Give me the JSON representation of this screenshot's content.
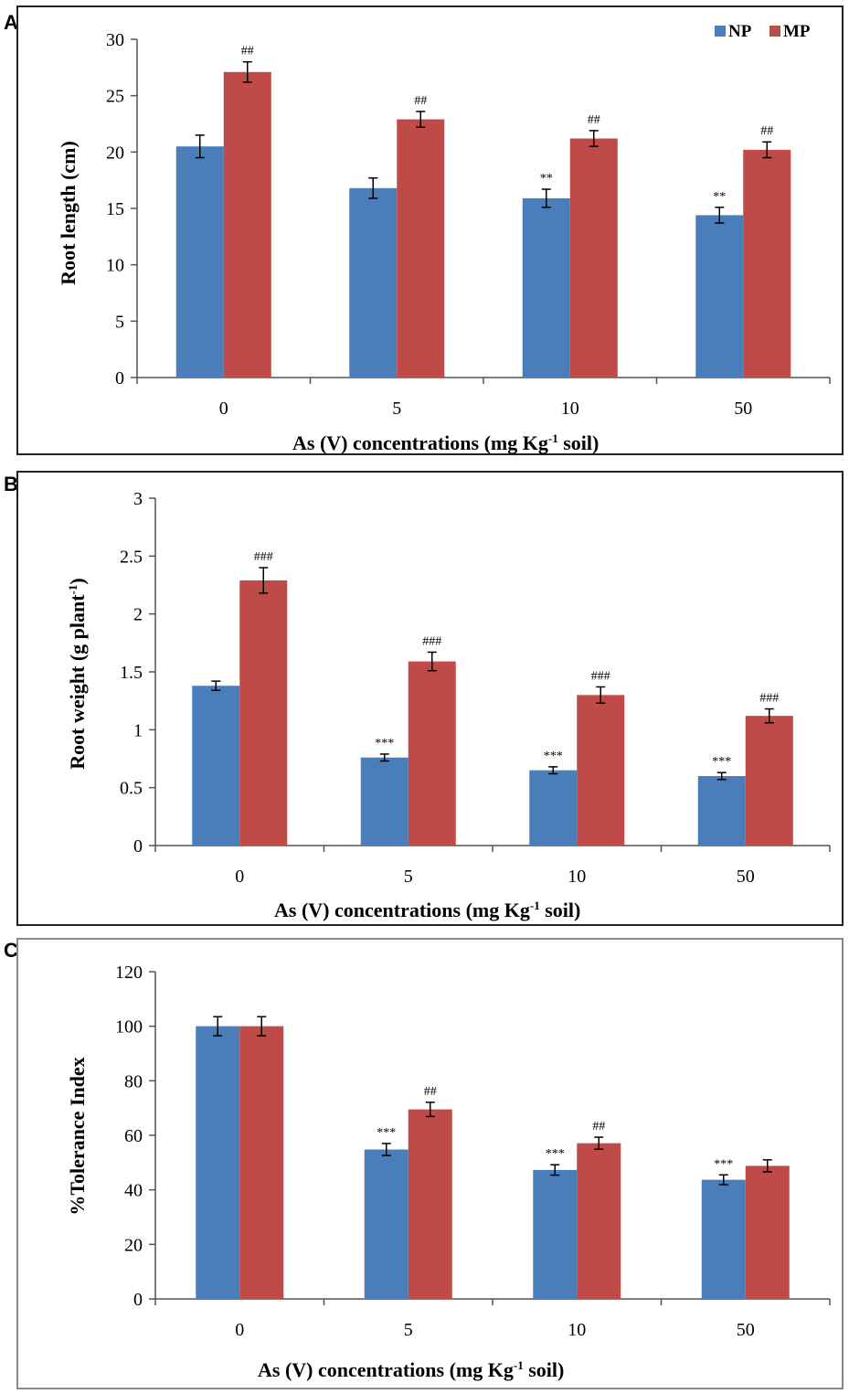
{
  "colors": {
    "np": "#4a7ebb",
    "mp": "#be4b48",
    "axis": "#555555"
  },
  "chart_data": [
    {
      "panel": "A",
      "type": "bar",
      "categories": [
        "0",
        "5",
        "10",
        "50"
      ],
      "series": [
        {
          "name": "NP",
          "values": [
            20.5,
            16.8,
            15.9,
            14.4
          ],
          "errors": [
            1.0,
            0.9,
            0.8,
            0.7
          ],
          "annotations": [
            "",
            "",
            "**",
            "**"
          ]
        },
        {
          "name": "MP",
          "values": [
            27.1,
            22.9,
            21.2,
            20.2
          ],
          "errors": [
            0.9,
            0.7,
            0.7,
            0.7
          ],
          "annotations": [
            "##",
            "##",
            "##",
            "##"
          ]
        }
      ],
      "xlabel": "As (V)  concentrations (mg Kg-1 soil)",
      "ylabel": "Root length (cm)",
      "ylim": [
        0,
        30
      ],
      "yticks": [
        "0",
        "5",
        "10",
        "15",
        "20",
        "25",
        "30"
      ],
      "legend": "top-right"
    },
    {
      "panel": "B",
      "type": "bar",
      "categories": [
        "0",
        "5",
        "10",
        "50"
      ],
      "series": [
        {
          "name": "NP",
          "values": [
            1.38,
            0.76,
            0.65,
            0.6
          ],
          "errors": [
            0.04,
            0.03,
            0.03,
            0.03
          ],
          "annotations": [
            "",
            "***",
            "***",
            "***"
          ]
        },
        {
          "name": "MP",
          "values": [
            2.29,
            1.59,
            1.3,
            1.12
          ],
          "errors": [
            0.11,
            0.08,
            0.07,
            0.06
          ],
          "annotations": [
            "###",
            "###",
            "###",
            "###"
          ]
        }
      ],
      "xlabel": "As (V) concentrations (mg Kg-1 soil)",
      "ylabel": "Root weight (g plant-1)",
      "ylim": [
        0,
        3
      ],
      "yticks": [
        "0",
        "0.5",
        "1",
        "1.5",
        "2",
        "2.5",
        "3"
      ]
    },
    {
      "panel": "C",
      "type": "bar",
      "categories": [
        "0",
        "5",
        "10",
        "50"
      ],
      "series": [
        {
          "name": "NP",
          "values": [
            100,
            54.8,
            47.3,
            43.7
          ],
          "errors": [
            3.5,
            2.2,
            1.9,
            1.8
          ],
          "annotations": [
            "",
            "***",
            "***",
            "***"
          ]
        },
        {
          "name": "MP",
          "values": [
            100,
            69.5,
            57.1,
            48.8
          ],
          "errors": [
            3.5,
            2.6,
            2.2,
            2.2
          ],
          "annotations": [
            "",
            "##",
            "##",
            ""
          ]
        }
      ],
      "xlabel": "As (V) concentrations (mg Kg-1 soil)",
      "ylabel": "%Tolerance Index",
      "ylim": [
        0,
        120
      ],
      "yticks": [
        "0",
        "20",
        "40",
        "60",
        "80",
        "100",
        "120"
      ]
    }
  ],
  "panels": {
    "a": {
      "letter": "A",
      "xlabel_pre": "As (V)  concentrations (mg Kg",
      "xlabel_sup": "-1",
      "xlabel_post": " soil)",
      "ylabel": "Root length (cm)",
      "legend_np": "NP",
      "legend_mp": "MP"
    },
    "b": {
      "letter": "B",
      "xlabel_pre": "As (V) concentrations (mg Kg",
      "xlabel_sup": "-1",
      "xlabel_post": " soil)",
      "ylabel_pre": "Root weight (g plant",
      "ylabel_sup": "-1",
      "ylabel_post": ")"
    },
    "c": {
      "letter": "C",
      "xlabel_pre": "As (V) concentrations (mg Kg",
      "xlabel_sup": "-1",
      "xlabel_post": " soil)",
      "ylabel": "%Tolerance Index"
    }
  }
}
